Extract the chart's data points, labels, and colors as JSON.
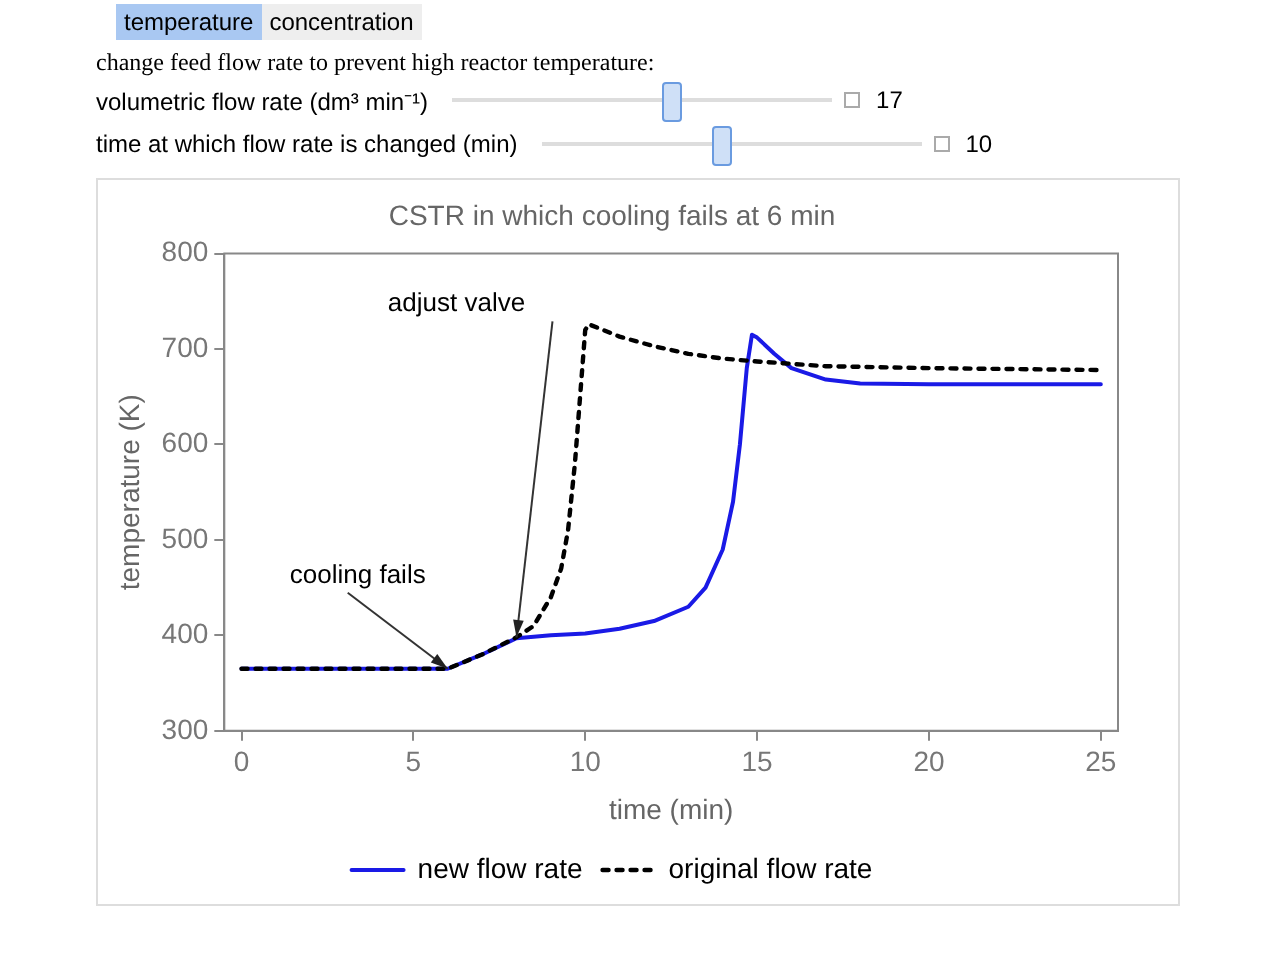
{
  "chart_data": {
    "type": "line",
    "title": "CSTR in which cooling fails at 6 min",
    "xlabel": "time (min)",
    "ylabel": "temperature (K)",
    "xlim": [
      -0.5,
      25.5
    ],
    "xticks": [
      0,
      5,
      10,
      15,
      20,
      25
    ],
    "ylim": [
      300,
      800
    ],
    "yticks": [
      300,
      400,
      500,
      600,
      700,
      800
    ],
    "grid": false,
    "legend": "bottom",
    "marker": "none",
    "annotations": [
      "temperature",
      "concentration",
      "change feed flow rate to prevent high reactor temperature:",
      "volumetric flow rate (dm³ min⁻¹)",
      "17",
      "time at which flow rate is changed (min)",
      "10",
      {
        "text": "cooling fails",
        "x": 6,
        "y": 365
      },
      {
        "text": "adjust valve",
        "x": 8,
        "y": 398
      }
    ],
    "series": [
      {
        "name": "new flow rate",
        "color": "#1a1ae6",
        "line_style": "solid",
        "x": [
          0,
          6,
          7,
          8,
          9,
          10,
          11,
          12,
          13,
          13.5,
          14,
          14.3,
          14.5,
          14.7,
          14.85,
          15,
          15.5,
          16,
          17,
          18,
          20,
          25
        ],
        "values": [
          365,
          365,
          380,
          397,
          400,
          402,
          407,
          415,
          430,
          450,
          490,
          540,
          600,
          680,
          715,
          712,
          695,
          680,
          668,
          664,
          663,
          663
        ]
      },
      {
        "name": "original flow rate",
        "color": "#000000",
        "line_style": "dashed",
        "x": [
          0,
          6,
          7,
          8,
          8.5,
          9,
          9.3,
          9.5,
          9.7,
          9.85,
          10,
          10.1,
          11,
          12,
          13,
          14,
          15,
          17,
          20,
          25
        ],
        "values": [
          365,
          365,
          380,
          398,
          410,
          440,
          470,
          510,
          580,
          650,
          720,
          726,
          713,
          703,
          695,
          690,
          687,
          682,
          680,
          678
        ]
      }
    ]
  }
}
